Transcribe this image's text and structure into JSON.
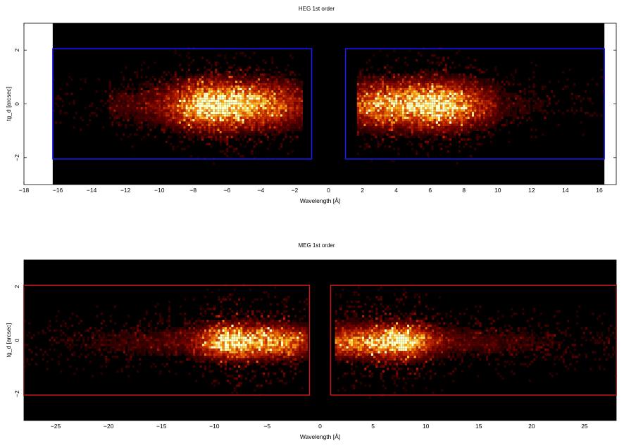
{
  "chart_data": [
    {
      "type": "heatmap",
      "title": "HEG 1st order",
      "xlabel": "Wavelength [Å]",
      "ylabel": "tg_d [arcsec]",
      "xlim": [
        -18,
        17
      ],
      "ylim": [
        -3,
        3
      ],
      "xticks": [
        -18,
        -16,
        -14,
        -12,
        -10,
        -8,
        -6,
        -4,
        -2,
        0,
        2,
        4,
        6,
        8,
        10,
        12,
        14,
        16
      ],
      "yticks": [
        -2,
        0,
        2
      ],
      "detector_x_range": [
        -16.3,
        16.3
      ],
      "background_color": "#000000",
      "extraction_regions": [
        {
          "x": [
            -16.3,
            -1.0
          ],
          "y": [
            -2.05,
            2.05
          ]
        },
        {
          "x": [
            1.0,
            16.3
          ],
          "y": [
            -2.05,
            2.05
          ]
        }
      ],
      "region_color": "#1a1aff",
      "intensity_peaks": [
        {
          "x": -7.0,
          "y": 0.0,
          "level": 0.95
        },
        {
          "x": -4.0,
          "y": 0.0,
          "level": 0.55
        },
        {
          "x": 3.0,
          "y": 0.0,
          "level": 0.6
        },
        {
          "x": 6.5,
          "y": 0.0,
          "level": 0.95
        }
      ]
    },
    {
      "type": "heatmap",
      "title": "MEG 1st order",
      "xlabel": "Wavelength [Å]",
      "ylabel": "tg_d [arcsec]",
      "xlim": [
        -28,
        28
      ],
      "ylim": [
        -3,
        3
      ],
      "xticks": [
        -25,
        -20,
        -15,
        -10,
        -5,
        0,
        5,
        10,
        15,
        20,
        25
      ],
      "yticks": [
        -2,
        0,
        2
      ],
      "background_color": "#000000",
      "extraction_regions": [
        {
          "x": [
            -28,
            -1.0
          ],
          "y": [
            -2.05,
            2.05
          ]
        },
        {
          "x": [
            1.0,
            28
          ],
          "y": [
            -2.05,
            2.05
          ]
        }
      ],
      "region_color": "#cc1a1a",
      "intensity_peaks": [
        {
          "x": -8.5,
          "y": 0.0,
          "level": 1.0
        },
        {
          "x": -4.0,
          "y": 0.0,
          "level": 0.6
        },
        {
          "x": 3.0,
          "y": 0.0,
          "level": 0.55
        },
        {
          "x": 7.5,
          "y": 0.0,
          "level": 1.0
        }
      ]
    }
  ]
}
